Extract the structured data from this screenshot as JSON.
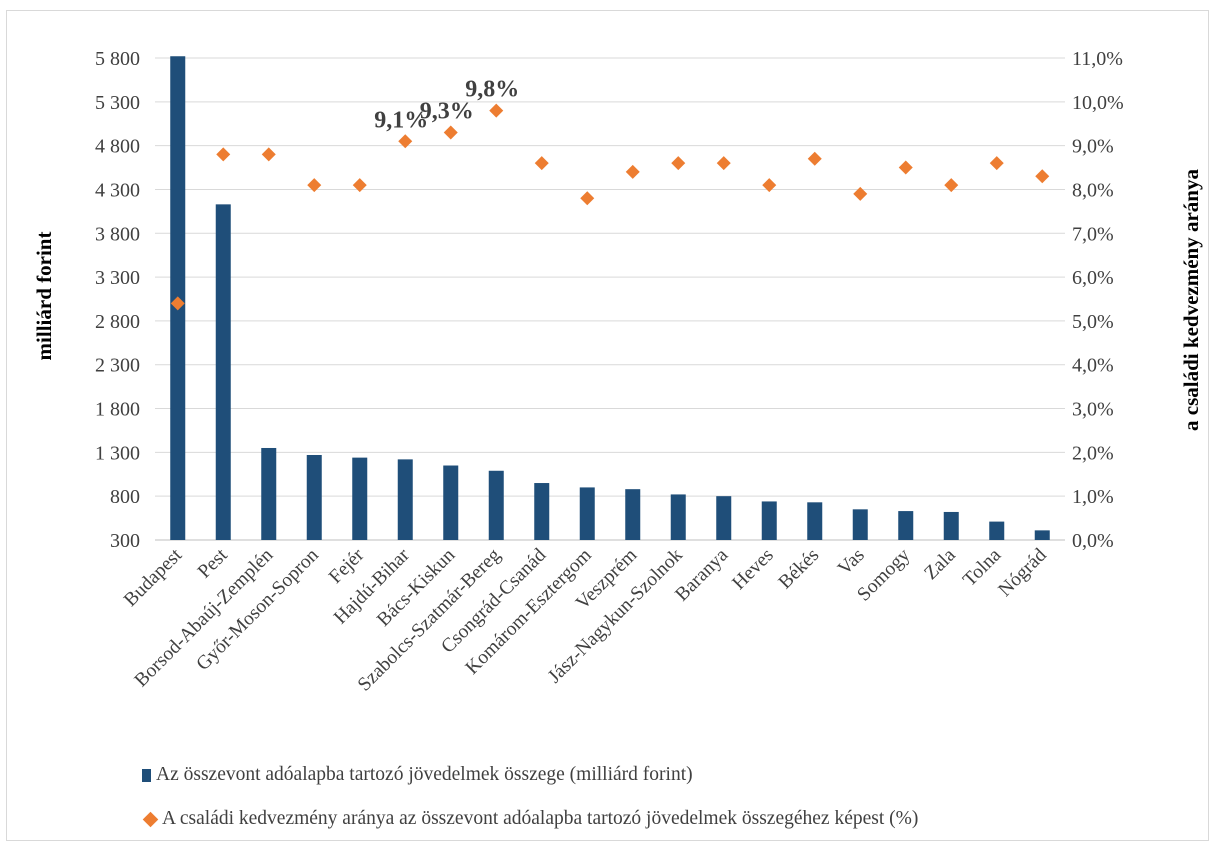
{
  "chart_data": {
    "type": "bar",
    "categories": [
      "Budapest",
      "Pest",
      "Borsod-Abaúj-Zemplén",
      "Győr-Moson-Sopron",
      "Fejér",
      "Hajdú-Bihar",
      "Bács-Kiskun",
      "Szabolcs-Szatmár-Bereg",
      "Csongrád-Csanád",
      "Komárom-Esztergom",
      "Veszprém",
      "Jász-Nagykun-Szolnok",
      "Baranya",
      "Heves",
      "Békés",
      "Vas",
      "Somogy",
      "Zala",
      "Tolna",
      "Nógrád"
    ],
    "series": [
      {
        "name": "Az összevont adóalapba tartozó jövedelmek összege (milliárd forint)",
        "type": "bar",
        "axis": "left",
        "color": "#1f4e79",
        "values": [
          5820,
          4130,
          1350,
          1270,
          1240,
          1220,
          1150,
          1090,
          950,
          900,
          880,
          820,
          800,
          740,
          730,
          650,
          630,
          620,
          510,
          410
        ]
      },
      {
        "name": "A családi kedvezmény aránya az összevont adóalapba tartozó jövedelmek összegéhez képest (%)",
        "type": "scatter",
        "axis": "right",
        "marker": "diamond",
        "color": "#ed7d31",
        "values": [
          5.4,
          8.8,
          8.8,
          8.1,
          8.1,
          9.1,
          9.3,
          9.8,
          8.6,
          7.8,
          8.4,
          8.6,
          8.6,
          8.1,
          8.7,
          7.9,
          8.5,
          8.1,
          8.6,
          8.3
        ]
      }
    ],
    "ylabel": "milliárd forint",
    "y2label": "a családi kedvezmény aránya",
    "ylim": [
      300,
      5800
    ],
    "y_ticks": [
      "300",
      "800",
      "1 300",
      "1 800",
      "2 300",
      "2 800",
      "3 300",
      "3 800",
      "4 300",
      "4 800",
      "5 300",
      "5 800"
    ],
    "y2lim": [
      0,
      11
    ],
    "y2_ticks": [
      "0,0%",
      "1,0%",
      "2,0%",
      "3,0%",
      "4,0%",
      "5,0%",
      "6,0%",
      "7,0%",
      "8,0%",
      "9,0%",
      "10,0%",
      "11,0%"
    ],
    "annotations": [
      {
        "category": "Hajdú-Bihar",
        "text": "9,1%"
      },
      {
        "category": "Bács-Kiskun",
        "text": "9,3%"
      },
      {
        "category": "Szabolcs-Szatmár-Bereg",
        "text": "9,8%"
      }
    ],
    "grid": true,
    "legend_position": "bottom"
  }
}
